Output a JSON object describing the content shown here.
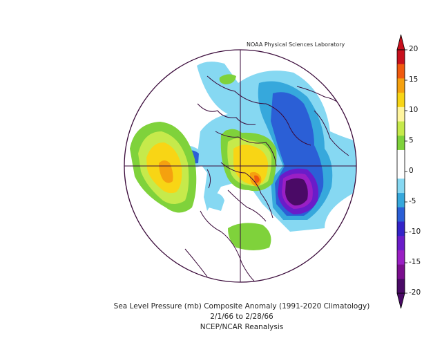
{
  "credit": "NOAA Physical Sciences Laboratory",
  "title": "Sea Level Pressure (mb) Composite Anomaly (1991-2020 Climatology)",
  "dates": "2/1/66  to 2/28/66",
  "source": "NCEP/NCAR Reanalysis",
  "colorbar": {
    "ticks": [
      "20",
      "15",
      "10",
      "5",
      "0",
      "-5",
      "-10",
      "-15",
      "-20"
    ],
    "colors_top_to_bottom": [
      "#c8101d",
      "#f05a0e",
      "#f5a10f",
      "#f8d515",
      "#fff59e",
      "#c6ea4b",
      "#7fd23b",
      "#ffffff",
      "#ffffff",
      "#86d8f2",
      "#36a8dc",
      "#2b5fd6",
      "#3323c8",
      "#6a1cc9",
      "#9a1fc4",
      "#7a0e8e",
      "#4a0a66"
    ]
  },
  "map": {
    "projection": "north-polar-stereographic",
    "features": [
      {
        "name": "aleutian-high-anomaly",
        "sign": "positive",
        "peak": "+15"
      },
      {
        "name": "arctic-high-anomaly",
        "sign": "positive",
        "peak": "+15"
      },
      {
        "name": "north-atlantic-low-anomaly",
        "sign": "negative",
        "peak": "-20"
      },
      {
        "name": "siberian-low-anomaly",
        "sign": "negative",
        "peak": "-10"
      },
      {
        "name": "us-high-anomaly",
        "sign": "positive",
        "peak": "+5"
      }
    ]
  }
}
